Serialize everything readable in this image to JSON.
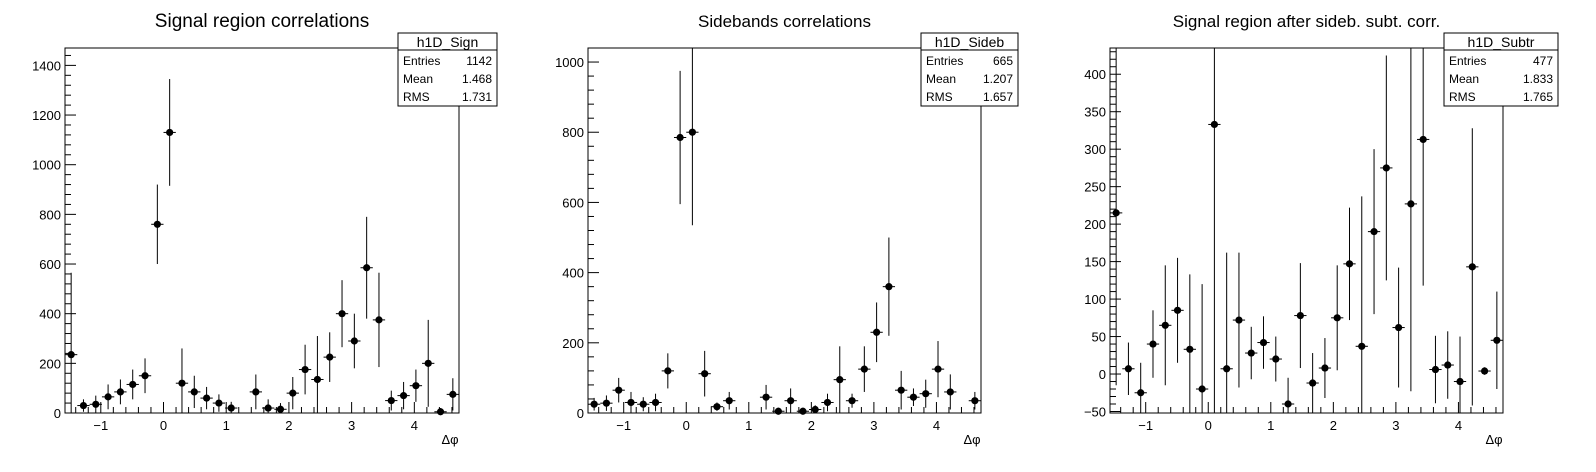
{
  "chart_data": [
    {
      "type": "scatter",
      "title": "Signal region correlations",
      "xlabel": "Δφ",
      "ylabel": "",
      "xlim": [
        -1.5708,
        4.7124
      ],
      "ylim": [
        0,
        1470
      ],
      "xticks": [
        -1,
        0,
        1,
        2,
        3,
        4
      ],
      "yticks": [
        0,
        200,
        400,
        600,
        800,
        1000,
        1200,
        1400
      ],
      "stats": {
        "name": "h1D_Sign",
        "rows": [
          [
            "Entries",
            "1142"
          ],
          [
            "Mean",
            "1.468"
          ],
          [
            "RMS",
            "1.731"
          ]
        ]
      },
      "series": [
        {
          "values": [
            235,
            30,
            35,
            65,
            85,
            115,
            150,
            760,
            1130,
            120,
            85,
            60,
            40,
            20,
            0,
            85,
            20,
            15,
            80,
            175,
            135,
            225,
            400,
            290,
            585,
            375,
            50,
            70,
            110,
            200,
            5,
            75
          ],
          "errors": [
            330,
            25,
            35,
            50,
            50,
            60,
            70,
            160,
            215,
            140,
            65,
            45,
            35,
            25,
            0,
            70,
            35,
            25,
            65,
            100,
            175,
            100,
            135,
            110,
            205,
            190,
            40,
            55,
            65,
            175,
            15,
            65
          ]
        }
      ]
    },
    {
      "type": "scatter",
      "title": "Sidebands correlations",
      "xlabel": "Δφ",
      "ylabel": "",
      "xlim": [
        -1.5708,
        4.7124
      ],
      "ylim": [
        0,
        1040
      ],
      "xticks": [
        -1,
        0,
        1,
        2,
        3,
        4
      ],
      "yticks": [
        0,
        200,
        400,
        600,
        800,
        1000
      ],
      "stats": {
        "name": "h1D_Sideb",
        "rows": [
          [
            "Entries",
            "665"
          ],
          [
            "Mean",
            "1.207"
          ],
          [
            "RMS",
            "1.657"
          ]
        ]
      },
      "series": [
        {
          "values": [
            25,
            28,
            65,
            30,
            25,
            30,
            120,
            785,
            800,
            112,
            18,
            35,
            0,
            0,
            45,
            5,
            35,
            5,
            10,
            30,
            95,
            35,
            125,
            230,
            360,
            65,
            45,
            55,
            125,
            60,
            0,
            35
          ],
          "errors": [
            18,
            22,
            35,
            30,
            20,
            25,
            50,
            190,
            265,
            65,
            12,
            25,
            0,
            0,
            35,
            10,
            35,
            10,
            12,
            25,
            95,
            20,
            65,
            85,
            140,
            55,
            25,
            40,
            80,
            50,
            0,
            25
          ]
        }
      ]
    },
    {
      "type": "scatter",
      "title": "Signal region after sideb. subt. corr.",
      "xlabel": "Δφ",
      "ylabel": "",
      "xlim": [
        -1.5708,
        4.7124
      ],
      "ylim": [
        -52,
        435
      ],
      "xticks": [
        -1,
        0,
        1,
        2,
        3,
        4
      ],
      "yticks": [
        -50,
        0,
        50,
        100,
        150,
        200,
        250,
        300,
        350,
        400
      ],
      "stats": {
        "name": "h1D_Subtr",
        "rows": [
          [
            "Entries",
            "477"
          ],
          [
            "Mean",
            "1.833"
          ],
          [
            "RMS",
            "1.765"
          ]
        ]
      },
      "series": [
        {
          "values": [
            215,
            7,
            -25,
            40,
            65,
            85,
            33,
            -20,
            333,
            7,
            72,
            28,
            42,
            20,
            -40,
            78,
            -12,
            8,
            75,
            147,
            37,
            190,
            275,
            62,
            227,
            313,
            6,
            12,
            -10,
            143,
            4,
            45
          ],
          "errors": [
            230,
            35,
            40,
            45,
            80,
            70,
            100,
            140,
            400,
            155,
            90,
            35,
            35,
            30,
            35,
            70,
            40,
            40,
            70,
            75,
            200,
            110,
            150,
            80,
            250,
            195,
            45,
            45,
            60,
            185,
            5,
            65
          ]
        }
      ]
    }
  ],
  "colors": {
    "marker": "#000000",
    "frame": "#000000",
    "stats_bg": "#ffffff"
  }
}
